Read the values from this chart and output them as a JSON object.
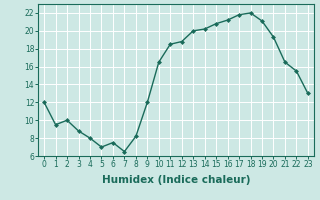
{
  "x": [
    0,
    1,
    2,
    3,
    4,
    5,
    6,
    7,
    8,
    9,
    10,
    11,
    12,
    13,
    14,
    15,
    16,
    17,
    18,
    19,
    20,
    21,
    22,
    23
  ],
  "y": [
    12,
    9.5,
    10,
    8.8,
    8,
    7,
    7.5,
    6.5,
    8.2,
    12,
    16.5,
    18.5,
    18.8,
    20,
    20.2,
    20.8,
    21.2,
    21.8,
    22,
    21.1,
    19.3,
    16.5,
    15.5,
    13
  ],
  "line_color": "#1a6b5a",
  "marker": "D",
  "marker_size": 2.0,
  "linewidth": 1.0,
  "xlabel": "Humidex (Indice chaleur)",
  "xlim": [
    -0.5,
    23.5
  ],
  "ylim": [
    6,
    23
  ],
  "yticks": [
    6,
    8,
    10,
    12,
    14,
    16,
    18,
    20,
    22
  ],
  "xticks": [
    0,
    1,
    2,
    3,
    4,
    5,
    6,
    7,
    8,
    9,
    10,
    11,
    12,
    13,
    14,
    15,
    16,
    17,
    18,
    19,
    20,
    21,
    22,
    23
  ],
  "xtick_labels": [
    "0",
    "1",
    "2",
    "3",
    "4",
    "5",
    "6",
    "7",
    "8",
    "9",
    "10",
    "11",
    "12",
    "13",
    "14",
    "15",
    "16",
    "17",
    "18",
    "19",
    "20",
    "21",
    "22",
    "23"
  ],
  "background_color": "#cde8e4",
  "grid_color": "#ffffff",
  "tick_label_fontsize": 5.5,
  "xlabel_fontsize": 7.5
}
